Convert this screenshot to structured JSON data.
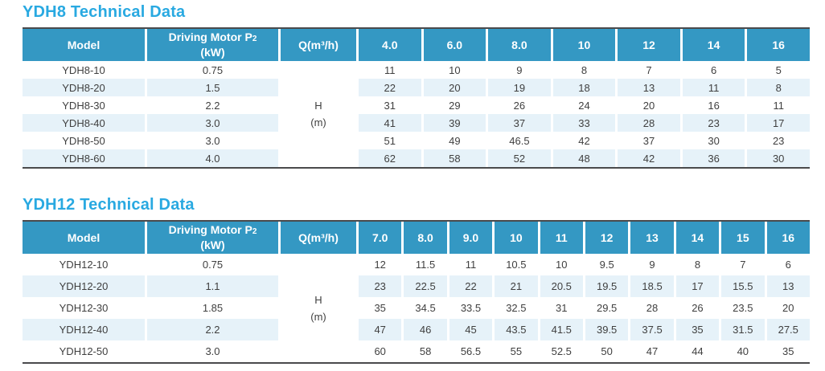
{
  "colors": {
    "title_blue": "#29A9E1",
    "header_bg": "#3498C3",
    "stripe_bg": "#E6F2F9",
    "border_dark": "#4A4A4C",
    "body_text": "#3F3F3F",
    "header_text": "#FFFFFF"
  },
  "tables": [
    {
      "id": "ydh8",
      "title": "YDH8 Technical Data",
      "headers": {
        "model": "Model",
        "motor_main": "Driving Motor P",
        "motor_sub": "2",
        "motor_unit": "(kW)",
        "flow": "Q(m³/h)"
      },
      "flow_columns": [
        "4.0",
        "6.0",
        "8.0",
        "10",
        "12",
        "14",
        "16"
      ],
      "head_unit": {
        "symbol": "H",
        "unit": "(m)"
      },
      "rows": [
        {
          "model": "YDH8-10",
          "power": "0.75",
          "values": [
            "11",
            "10",
            "9",
            "8",
            "7",
            "6",
            "5"
          ]
        },
        {
          "model": "YDH8-20",
          "power": "1.5",
          "values": [
            "22",
            "20",
            "19",
            "18",
            "13",
            "11",
            "8"
          ]
        },
        {
          "model": "YDH8-30",
          "power": "2.2",
          "values": [
            "31",
            "29",
            "26",
            "24",
            "20",
            "16",
            "11"
          ]
        },
        {
          "model": "YDH8-40",
          "power": "3.0",
          "values": [
            "41",
            "39",
            "37",
            "33",
            "28",
            "23",
            "17"
          ]
        },
        {
          "model": "YDH8-50",
          "power": "3.0",
          "values": [
            "51",
            "49",
            "46.5",
            "42",
            "37",
            "30",
            "23"
          ]
        },
        {
          "model": "YDH8-60",
          "power": "4.0",
          "values": [
            "62",
            "58",
            "52",
            "48",
            "42",
            "36",
            "30"
          ]
        }
      ]
    },
    {
      "id": "ydh12",
      "title": "YDH12 Technical Data",
      "headers": {
        "model": "Model",
        "motor_main": "Driving Motor P",
        "motor_sub": "2",
        "motor_unit": "(kW)",
        "flow": "Q(m³/h)"
      },
      "flow_columns": [
        "7.0",
        "8.0",
        "9.0",
        "10",
        "11",
        "12",
        "13",
        "14",
        "15",
        "16"
      ],
      "head_unit": {
        "symbol": "H",
        "unit": "(m)"
      },
      "rows": [
        {
          "model": "YDH12-10",
          "power": "0.75",
          "values": [
            "12",
            "11.5",
            "11",
            "10.5",
            "10",
            "9.5",
            "9",
            "8",
            "7",
            "6"
          ]
        },
        {
          "model": "YDH12-20",
          "power": "1.1",
          "values": [
            "23",
            "22.5",
            "22",
            "21",
            "20.5",
            "19.5",
            "18.5",
            "17",
            "15.5",
            "13"
          ]
        },
        {
          "model": "YDH12-30",
          "power": "1.85",
          "values": [
            "35",
            "34.5",
            "33.5",
            "32.5",
            "31",
            "29.5",
            "28",
            "26",
            "23.5",
            "20"
          ]
        },
        {
          "model": "YDH12-40",
          "power": "2.2",
          "values": [
            "47",
            "46",
            "45",
            "43.5",
            "41.5",
            "39.5",
            "37.5",
            "35",
            "31.5",
            "27.5"
          ]
        },
        {
          "model": "YDH12-50",
          "power": "3.0",
          "values": [
            "60",
            "58",
            "56.5",
            "55",
            "52.5",
            "50",
            "47",
            "44",
            "40",
            "35"
          ]
        }
      ]
    }
  ]
}
